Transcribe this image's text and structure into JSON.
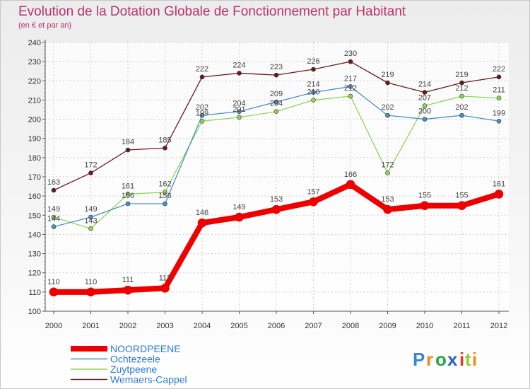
{
  "chart_data": {
    "type": "line",
    "title": "Evolution de la Dotation Globale de Fonctionnement par Habitant",
    "subtitle": "(en € et par an)",
    "x": [
      "2000",
      "2001",
      "2002",
      "2003",
      "2004",
      "2005",
      "2006",
      "2007",
      "2008",
      "2009",
      "2010",
      "2011",
      "2012"
    ],
    "ylim": [
      100,
      240
    ],
    "yticks": [
      100,
      110,
      120,
      130,
      140,
      150,
      160,
      170,
      180,
      190,
      200,
      210,
      220,
      230,
      240
    ],
    "grid": true,
    "legend_position": "bottom-left",
    "series": [
      {
        "name": "Wemaers-Cappel",
        "color": "#6b1a1a",
        "values": [
          163,
          172,
          184,
          185,
          222,
          224,
          223,
          226,
          230,
          219,
          214,
          219,
          222
        ]
      },
      {
        "name": "Zuytpeene",
        "color": "#8fd45a",
        "values": [
          149,
          143,
          161,
          162,
          199,
          201,
          204,
          210,
          212,
          172,
          207,
          212,
          211
        ]
      },
      {
        "name": "Ochtezeele",
        "color": "#4a90c8",
        "values": [
          144,
          149,
          156,
          156,
          202,
          204,
          209,
          214,
          217,
          202,
          200,
          202,
          199
        ]
      },
      {
        "name": "NOORDPEENE",
        "color": "#ee0000",
        "values": [
          110,
          110,
          111,
          112,
          146,
          149,
          153,
          157,
          166,
          153,
          155,
          155,
          161
        ]
      }
    ],
    "labels": {
      "Wemaers-Cappel": [
        "163",
        "172",
        "184",
        "185",
        "222",
        "224",
        "223",
        "226",
        "230",
        "219",
        "214",
        "219",
        "222"
      ],
      "Zuytpeene": [
        "149",
        "143",
        "161",
        "162",
        "199",
        "201",
        "204",
        "210",
        "212",
        "172",
        "207",
        "212",
        "211"
      ],
      "Ochtezeele": [
        "144",
        "149",
        "156",
        "156",
        "202",
        "204",
        "209",
        "214",
        "217",
        "202",
        "200",
        "202",
        "199"
      ],
      "NOORDPEENE": [
        "110",
        "110",
        "111",
        "112",
        "146",
        "149",
        "153",
        "157",
        "166",
        "153",
        "155",
        "155",
        "161"
      ]
    },
    "legend": [
      "NOORDPEENE",
      "Ochtezeele",
      "Zuytpeene",
      "Wemaers-Cappel"
    ]
  },
  "logo": {
    "text": "Proxiti",
    "letters": [
      "P",
      "r",
      "o",
      "x",
      "i",
      "t",
      "i"
    ],
    "colors": [
      "#3a86d6",
      "#f08a1c",
      "#2aa84a",
      "#2a62c8",
      "#e23a2a",
      "#9acd32",
      "#f08a1c"
    ]
  }
}
